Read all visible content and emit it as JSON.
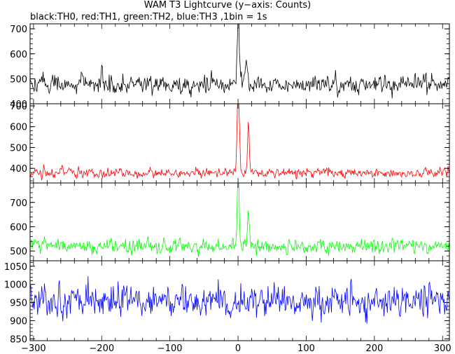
{
  "title": "WAM T3 Lightcurve (y−axis: Counts)",
  "subtitle": "black:TH0, red:TH1, green:TH2, blue:TH3 ,1bin = 1s",
  "chart_data": {
    "type": "line",
    "x_range": [
      -305,
      310
    ],
    "x_ticks": [
      -300,
      -200,
      -100,
      0,
      100,
      200,
      300
    ],
    "x_tick_labels": [
      "−300",
      "−200",
      "−100",
      "0",
      "100",
      "200",
      "300"
    ],
    "bin_seconds": 1,
    "panels": [
      {
        "series_name": "TH0",
        "color": "#000000",
        "ylim": [
          400,
          720
        ],
        "y_ticks": [
          400,
          500,
          600,
          700
        ],
        "baseline": 478,
        "noise_sd": 22,
        "min_value": 405,
        "features": [
          {
            "x": -200,
            "peak": 565,
            "width": 1
          },
          {
            "x": 0,
            "peak": 715,
            "width": 1.4
          },
          {
            "x": 12,
            "peak": 560,
            "width": 2
          }
        ]
      },
      {
        "series_name": "TH1",
        "color": "#ff0000",
        "ylim": [
          330,
          710
        ],
        "y_ticks": [
          400,
          500,
          600,
          700
        ],
        "baseline": 378,
        "noise_sd": 14,
        "min_value": 336,
        "features": [
          {
            "x": 0,
            "peak": 705,
            "width": 1.5
          },
          {
            "x": 15,
            "peak": 595,
            "width": 1.1
          }
        ]
      },
      {
        "series_name": "TH2",
        "color": "#00ff00",
        "ylim": [
          460,
          780
        ],
        "y_ticks": [
          500,
          600,
          700
        ],
        "baseline": 520,
        "noise_sd": 18,
        "min_value": 463,
        "features": [
          {
            "x": 0,
            "peak": 772,
            "width": 1.4
          },
          {
            "x": 15,
            "peak": 640,
            "width": 1.2
          }
        ]
      },
      {
        "series_name": "TH3",
        "color": "#0000ff",
        "ylim": [
          845,
          1065
        ],
        "y_ticks": [
          850,
          900,
          950,
          1000,
          1050
        ],
        "baseline": 955,
        "noise_sd": 26,
        "min_value": 848,
        "features": []
      }
    ]
  }
}
